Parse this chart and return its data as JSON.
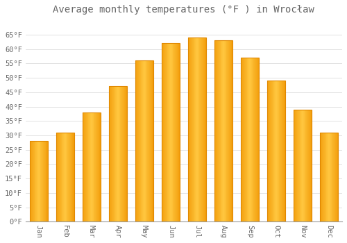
{
  "title": "Average monthly temperatures (°F ) in Wrocław",
  "months": [
    "Jan",
    "Feb",
    "Mar",
    "Apr",
    "May",
    "Jun",
    "Jul",
    "Aug",
    "Sep",
    "Oct",
    "Nov",
    "Dec"
  ],
  "values": [
    28,
    31,
    38,
    47,
    56,
    62,
    64,
    63,
    57,
    49,
    39,
    31
  ],
  "bar_color": "#FFA500",
  "bar_edge_color": "#E08800",
  "background_color": "#ffffff",
  "plot_bg_color": "#ffffff",
  "grid_color": "#dddddd",
  "text_color": "#666666",
  "ylim": [
    0,
    70
  ],
  "yticks": [
    0,
    5,
    10,
    15,
    20,
    25,
    30,
    35,
    40,
    45,
    50,
    55,
    60,
    65
  ],
  "ytick_labels": [
    "0°F",
    "5°F",
    "10°F",
    "15°F",
    "20°F",
    "25°F",
    "30°F",
    "35°F",
    "40°F",
    "45°F",
    "50°F",
    "55°F",
    "60°F",
    "65°F"
  ],
  "title_fontsize": 10,
  "tick_fontsize": 7.5,
  "font_family": "monospace",
  "bar_width": 0.7
}
